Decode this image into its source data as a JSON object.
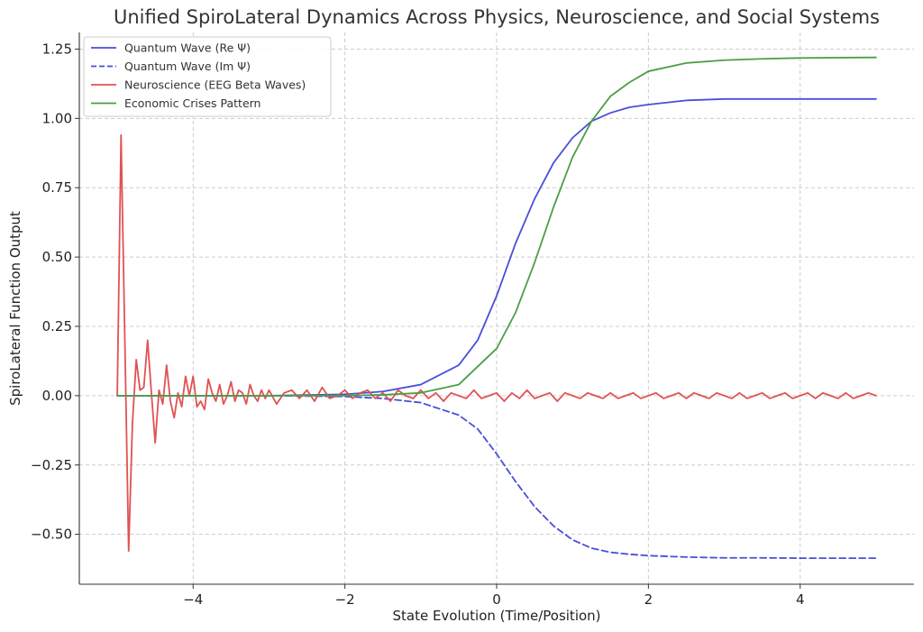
{
  "chart_data": {
    "type": "line",
    "title": "Unified SpiroLateral Dynamics Across Physics, Neuroscience, and Social Systems",
    "xlabel": "State Evolution (Time/Position)",
    "ylabel": "SpiroLateral Function Output",
    "xlim": [
      -5.5,
      5.5
    ],
    "ylim": [
      -0.68,
      1.31
    ],
    "x_ticks": [
      -4,
      -2,
      0,
      2,
      4
    ],
    "x_tick_labels": [
      "−4",
      "−2",
      "0",
      "2",
      "4"
    ],
    "y_ticks": [
      -0.5,
      -0.25,
      0.0,
      0.25,
      0.5,
      0.75,
      1.0,
      1.25
    ],
    "y_tick_labels": [
      "−0.50",
      "−0.25",
      "0.00",
      "0.25",
      "0.50",
      "0.75",
      "1.00",
      "1.25"
    ],
    "grid": true,
    "legend_position": "top-left",
    "x": [
      -5.0,
      -4.5,
      -4.0,
      -3.5,
      -3.0,
      -2.5,
      -2.0,
      -1.5,
      -1.0,
      -0.5,
      0.0,
      0.25,
      0.5,
      0.75,
      1.0,
      1.25,
      1.5,
      2.0,
      2.5,
      3.0,
      3.5,
      4.0,
      4.5,
      5.0
    ],
    "series": [
      {
        "name": "Quantum Wave (Re Ψ)",
        "color": "#4a4fd8",
        "style": "solid",
        "x": [
          -5.0,
          -3.0,
          -2.0,
          -1.5,
          -1.0,
          -0.5,
          -0.25,
          0.0,
          0.25,
          0.5,
          0.75,
          1.0,
          1.25,
          1.5,
          1.75,
          2.0,
          2.5,
          3.0,
          3.5,
          4.0,
          5.0
        ],
        "values": [
          0.0,
          0.0,
          0.005,
          0.015,
          0.04,
          0.11,
          0.2,
          0.36,
          0.55,
          0.71,
          0.84,
          0.93,
          0.99,
          1.02,
          1.04,
          1.05,
          1.065,
          1.07,
          1.07,
          1.07,
          1.07
        ]
      },
      {
        "name": "Quantum Wave (Im Ψ)",
        "color": "#4a4fd8",
        "style": "dashed",
        "x": [
          -5.0,
          -3.0,
          -2.0,
          -1.5,
          -1.0,
          -0.5,
          -0.25,
          0.0,
          0.25,
          0.5,
          0.75,
          1.0,
          1.25,
          1.5,
          1.75,
          2.0,
          2.5,
          3.0,
          3.5,
          4.0,
          5.0
        ],
        "values": [
          0.0,
          0.0,
          -0.003,
          -0.01,
          -0.025,
          -0.07,
          -0.12,
          -0.21,
          -0.31,
          -0.4,
          -0.47,
          -0.52,
          -0.55,
          -0.565,
          -0.572,
          -0.577,
          -0.582,
          -0.585,
          -0.585,
          -0.586,
          -0.586
        ]
      },
      {
        "name": "Neuroscience (EEG Beta Waves)",
        "color": "#e05252",
        "style": "solid",
        "x": [
          -5.0,
          -4.95,
          -4.9,
          -4.85,
          -4.8,
          -4.75,
          -4.7,
          -4.65,
          -4.6,
          -4.55,
          -4.5,
          -4.45,
          -4.4,
          -4.35,
          -4.3,
          -4.25,
          -4.2,
          -4.15,
          -4.1,
          -4.05,
          -4.0,
          -3.95,
          -3.9,
          -3.85,
          -3.8,
          -3.75,
          -3.7,
          -3.65,
          -3.6,
          -3.55,
          -3.5,
          -3.45,
          -3.4,
          -3.35,
          -3.3,
          -3.25,
          -3.2,
          -3.15,
          -3.1,
          -3.05,
          -3.0,
          -2.9,
          -2.8,
          -2.7,
          -2.6,
          -2.5,
          -2.4,
          -2.3,
          -2.2,
          -2.1,
          -2.0,
          -1.9,
          -1.8,
          -1.7,
          -1.6,
          -1.5,
          -1.4,
          -1.3,
          -1.2,
          -1.1,
          -1.0,
          -0.9,
          -0.8,
          -0.7,
          -0.6,
          -0.5,
          -0.4,
          -0.3,
          -0.2,
          -0.1,
          0.0,
          0.1,
          0.2,
          0.3,
          0.4,
          0.5,
          0.6,
          0.7,
          0.8,
          0.9,
          1.0,
          1.1,
          1.2,
          1.3,
          1.4,
          1.5,
          1.6,
          1.7,
          1.8,
          1.9,
          2.0,
          2.1,
          2.2,
          2.3,
          2.4,
          2.5,
          2.6,
          2.7,
          2.8,
          2.9,
          3.0,
          3.1,
          3.2,
          3.3,
          3.4,
          3.5,
          3.6,
          3.7,
          3.8,
          3.9,
          4.0,
          4.1,
          4.2,
          4.3,
          4.4,
          4.5,
          4.6,
          4.7,
          4.8,
          4.9,
          5.0
        ],
        "values": [
          0.0,
          0.94,
          0.2,
          -0.56,
          -0.1,
          0.13,
          0.02,
          0.03,
          0.2,
          0.01,
          -0.17,
          0.02,
          -0.03,
          0.11,
          -0.02,
          -0.08,
          0.01,
          -0.04,
          0.07,
          0.0,
          0.07,
          -0.04,
          -0.02,
          -0.05,
          0.06,
          0.01,
          -0.02,
          0.04,
          -0.03,
          0.0,
          0.05,
          -0.02,
          0.02,
          0.01,
          -0.03,
          0.04,
          0.0,
          -0.02,
          0.02,
          -0.01,
          0.02,
          -0.03,
          0.01,
          0.02,
          -0.01,
          0.02,
          -0.02,
          0.03,
          -0.01,
          0.0,
          0.02,
          -0.01,
          0.01,
          0.02,
          -0.01,
          0.01,
          -0.02,
          0.02,
          0.0,
          -0.01,
          0.02,
          -0.01,
          0.01,
          -0.02,
          0.01,
          0.0,
          -0.01,
          0.02,
          -0.01,
          0.0,
          0.01,
          -0.02,
          0.01,
          -0.01,
          0.02,
          -0.01,
          0.0,
          0.01,
          -0.02,
          0.01,
          0.0,
          -0.01,
          0.01,
          0.0,
          -0.01,
          0.01,
          -0.01,
          0.0,
          0.01,
          -0.01,
          0.0,
          0.01,
          -0.01,
          0.0,
          0.01,
          -0.01,
          0.01,
          0.0,
          -0.01,
          0.01,
          0.0,
          -0.01,
          0.01,
          -0.01,
          0.0,
          0.01,
          -0.01,
          0.0,
          0.01,
          -0.01,
          0.0,
          0.01,
          -0.01,
          0.01,
          0.0,
          -0.01,
          0.01,
          -0.01,
          0.0,
          0.01,
          0.0
        ]
      },
      {
        "name": "Economic Crises Pattern",
        "color": "#4c9e45",
        "style": "solid",
        "x": [
          -5.0,
          -2.0,
          -1.5,
          -1.0,
          -0.5,
          0.0,
          0.25,
          0.5,
          0.75,
          1.0,
          1.25,
          1.5,
          1.75,
          2.0,
          2.5,
          3.0,
          3.5,
          4.0,
          5.0
        ],
        "values": [
          0.0,
          0.0,
          0.003,
          0.01,
          0.04,
          0.17,
          0.3,
          0.48,
          0.68,
          0.86,
          0.99,
          1.08,
          1.13,
          1.17,
          1.2,
          1.21,
          1.215,
          1.218,
          1.22
        ]
      }
    ]
  }
}
